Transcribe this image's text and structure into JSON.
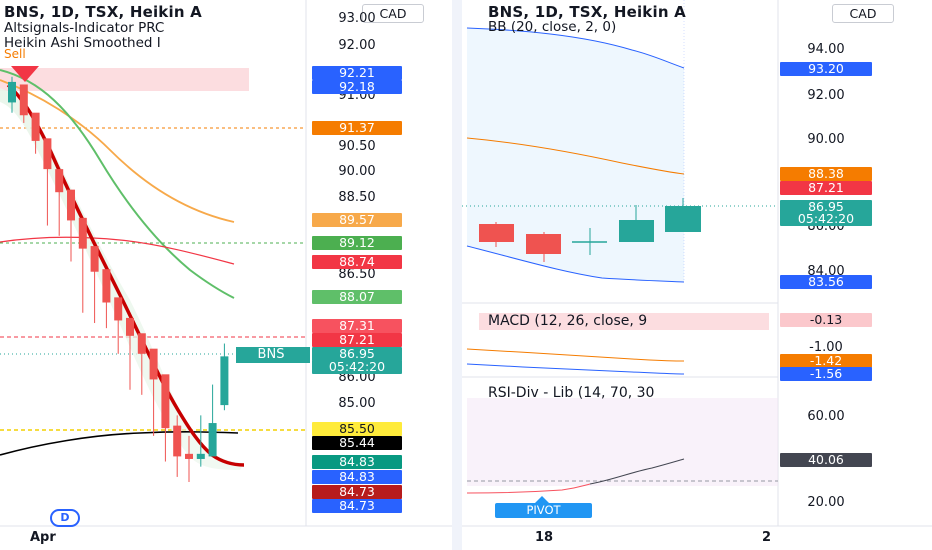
{
  "left": {
    "title": "BNS, 1D, TSX, Heikin A",
    "indicator_1": "Altsignals-Indicator PRC",
    "indicator_2": "Heikin Ashi Smoothed I",
    "signal": "Sell",
    "currency": "CAD",
    "price_axis": [
      "93.00",
      "92.00",
      "91.00",
      "90.50",
      "90.00",
      "88.50",
      "86.50",
      "86.00",
      "85.00"
    ],
    "price_tags": [
      {
        "text": "92.21",
        "color": "#2962ff"
      },
      {
        "text": "92.18",
        "color": "#2962ff"
      },
      {
        "text": "91.37",
        "color": "#f57c00"
      },
      {
        "text": "89.57",
        "color": "#f7a94a"
      },
      {
        "text": "89.12",
        "color": "#4caf50"
      },
      {
        "text": "88.74",
        "color": "#f23645"
      },
      {
        "text": "88.07",
        "color": "#5fbf69"
      },
      {
        "text": "87.31",
        "color": "#f7525f"
      },
      {
        "text": "87.21",
        "color": "#f23645"
      },
      {
        "text": "86.95",
        "color": "#26a69a"
      },
      {
        "text": "05:42:20",
        "color": "#26a69a"
      },
      {
        "text": "85.50",
        "color": "#ffeb3b",
        "text_color": "#131722"
      },
      {
        "text": "85.44",
        "color": "#000000"
      },
      {
        "text": "84.83",
        "color": "#089981"
      },
      {
        "text": "84.83",
        "color": "#2962ff"
      },
      {
        "text": "84.73",
        "color": "#b71c1c"
      },
      {
        "text": "84.73",
        "color": "#2962ff"
      }
    ],
    "symbol_tag": "BNS",
    "time_axis": [
      "Apr"
    ],
    "dividend_badge": "D",
    "bars": [
      {
        "open": 91.9,
        "close": 92.3,
        "high": 92.4,
        "low": 91.7
      },
      {
        "open": 92.25,
        "close": 91.65,
        "high": 92.0,
        "low": 91.5
      },
      {
        "open": 91.7,
        "close": 91.15,
        "high": 91.5,
        "low": 90.9
      },
      {
        "open": 91.2,
        "close": 90.6,
        "high": 90.8,
        "low": 89.5
      },
      {
        "open": 90.6,
        "close": 90.15,
        "high": 90.4,
        "low": 89.3
      },
      {
        "open": 90.2,
        "close": 89.6,
        "high": 89.9,
        "low": 88.8
      },
      {
        "open": 89.65,
        "close": 89.05,
        "high": 89.3,
        "low": 87.8
      },
      {
        "open": 89.1,
        "close": 88.6,
        "high": 88.8,
        "low": 87.6
      },
      {
        "open": 88.65,
        "close": 88.0,
        "high": 88.3,
        "low": 87.5
      },
      {
        "open": 88.1,
        "close": 87.65,
        "high": 87.9,
        "low": 87.0
      },
      {
        "open": 87.7,
        "close": 87.35,
        "high": 87.55,
        "low": 86.3
      },
      {
        "open": 87.4,
        "close": 87.0,
        "high": 87.1,
        "low": 86.2
      },
      {
        "open": 87.1,
        "close": 86.5,
        "high": 86.8,
        "low": 85.4
      },
      {
        "open": 86.6,
        "close": 85.55,
        "high": 86.1,
        "low": 84.9
      },
      {
        "open": 85.6,
        "close": 85.0,
        "high": 85.8,
        "low": 84.6
      },
      {
        "open": 85.05,
        "close": 84.95,
        "high": 85.4,
        "low": 84.5
      },
      {
        "open": 84.95,
        "close": 85.05,
        "high": 85.8,
        "low": 84.8
      },
      {
        "open": 85.0,
        "close": 85.65,
        "high": 86.4,
        "low": 85.0
      },
      {
        "open": 86.0,
        "close": 86.95,
        "high": 87.2,
        "low": 85.9
      }
    ]
  },
  "right": {
    "title": "BNS, 1D, TSX, Heikin A",
    "bb_label": "BB (20, close, 2, 0)",
    "currency": "CAD",
    "price_axis": [
      "94.00",
      "92.00",
      "90.00",
      "86.00",
      "84.00"
    ],
    "price_tags": [
      {
        "text": "93.20",
        "color": "#2962ff"
      },
      {
        "text": "88.38",
        "color": "#f57c00"
      },
      {
        "text": "87.21",
        "color": "#f23645"
      },
      {
        "text": "86.95",
        "color": "#26a69a"
      },
      {
        "text": "05:42:20",
        "color": "#26a69a"
      },
      {
        "text": "83.56",
        "color": "#2962ff"
      }
    ],
    "macd_label": "MACD (12, 26, close, 9",
    "macd_axis": [
      "-1.00"
    ],
    "macd_tags": [
      {
        "text": "-0.13",
        "color": "#fbc8cc",
        "text_color": "#131722"
      },
      {
        "text": "-1.42",
        "color": "#f57c00"
      },
      {
        "text": "-1.56",
        "color": "#2962ff"
      }
    ],
    "rsi_label": "RSI-Div - Lib (14, 70, 30",
    "rsi_axis": [
      "60.00",
      "20.00"
    ],
    "rsi_tags": [
      {
        "text": "40.06",
        "color": "#434651"
      }
    ],
    "pivot": "PIVOT",
    "time_axis": [
      "18",
      "2"
    ]
  }
}
